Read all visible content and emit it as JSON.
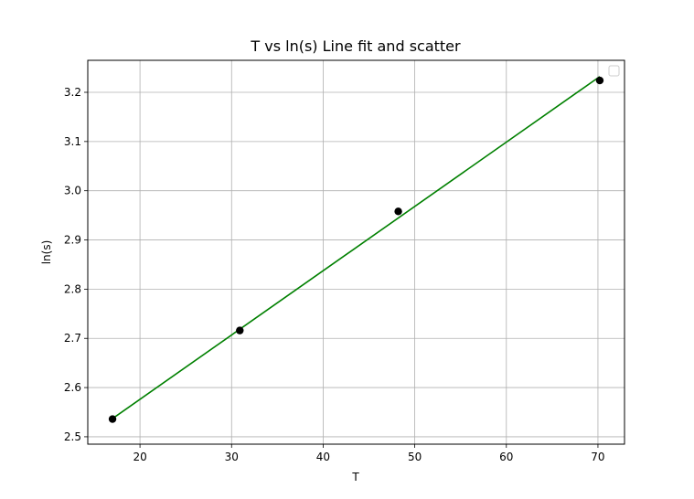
{
  "chart_data": {
    "type": "scatter",
    "title": "T vs ln(s) Line fit and scatter",
    "xlabel": "T",
    "ylabel": "ln(s)",
    "xlim": [
      14.3,
      72.9
    ],
    "ylim": [
      2.485,
      3.265
    ],
    "xticks": [
      20,
      30,
      40,
      50,
      60,
      70
    ],
    "yticks": [
      2.5,
      2.6,
      2.7,
      2.8,
      2.9,
      3.0,
      3.1,
      3.2
    ],
    "grid": true,
    "legend": "upper right (empty)",
    "series": [
      {
        "kind": "scatter",
        "color": "#000000",
        "x": [
          17.0,
          30.9,
          48.2,
          70.2
        ],
        "y": [
          2.536,
          2.716,
          2.958,
          3.224
        ]
      },
      {
        "kind": "line",
        "color": "#008000",
        "x": [
          17.0,
          70.2
        ],
        "y": [
          2.537,
          3.232
        ]
      }
    ]
  }
}
